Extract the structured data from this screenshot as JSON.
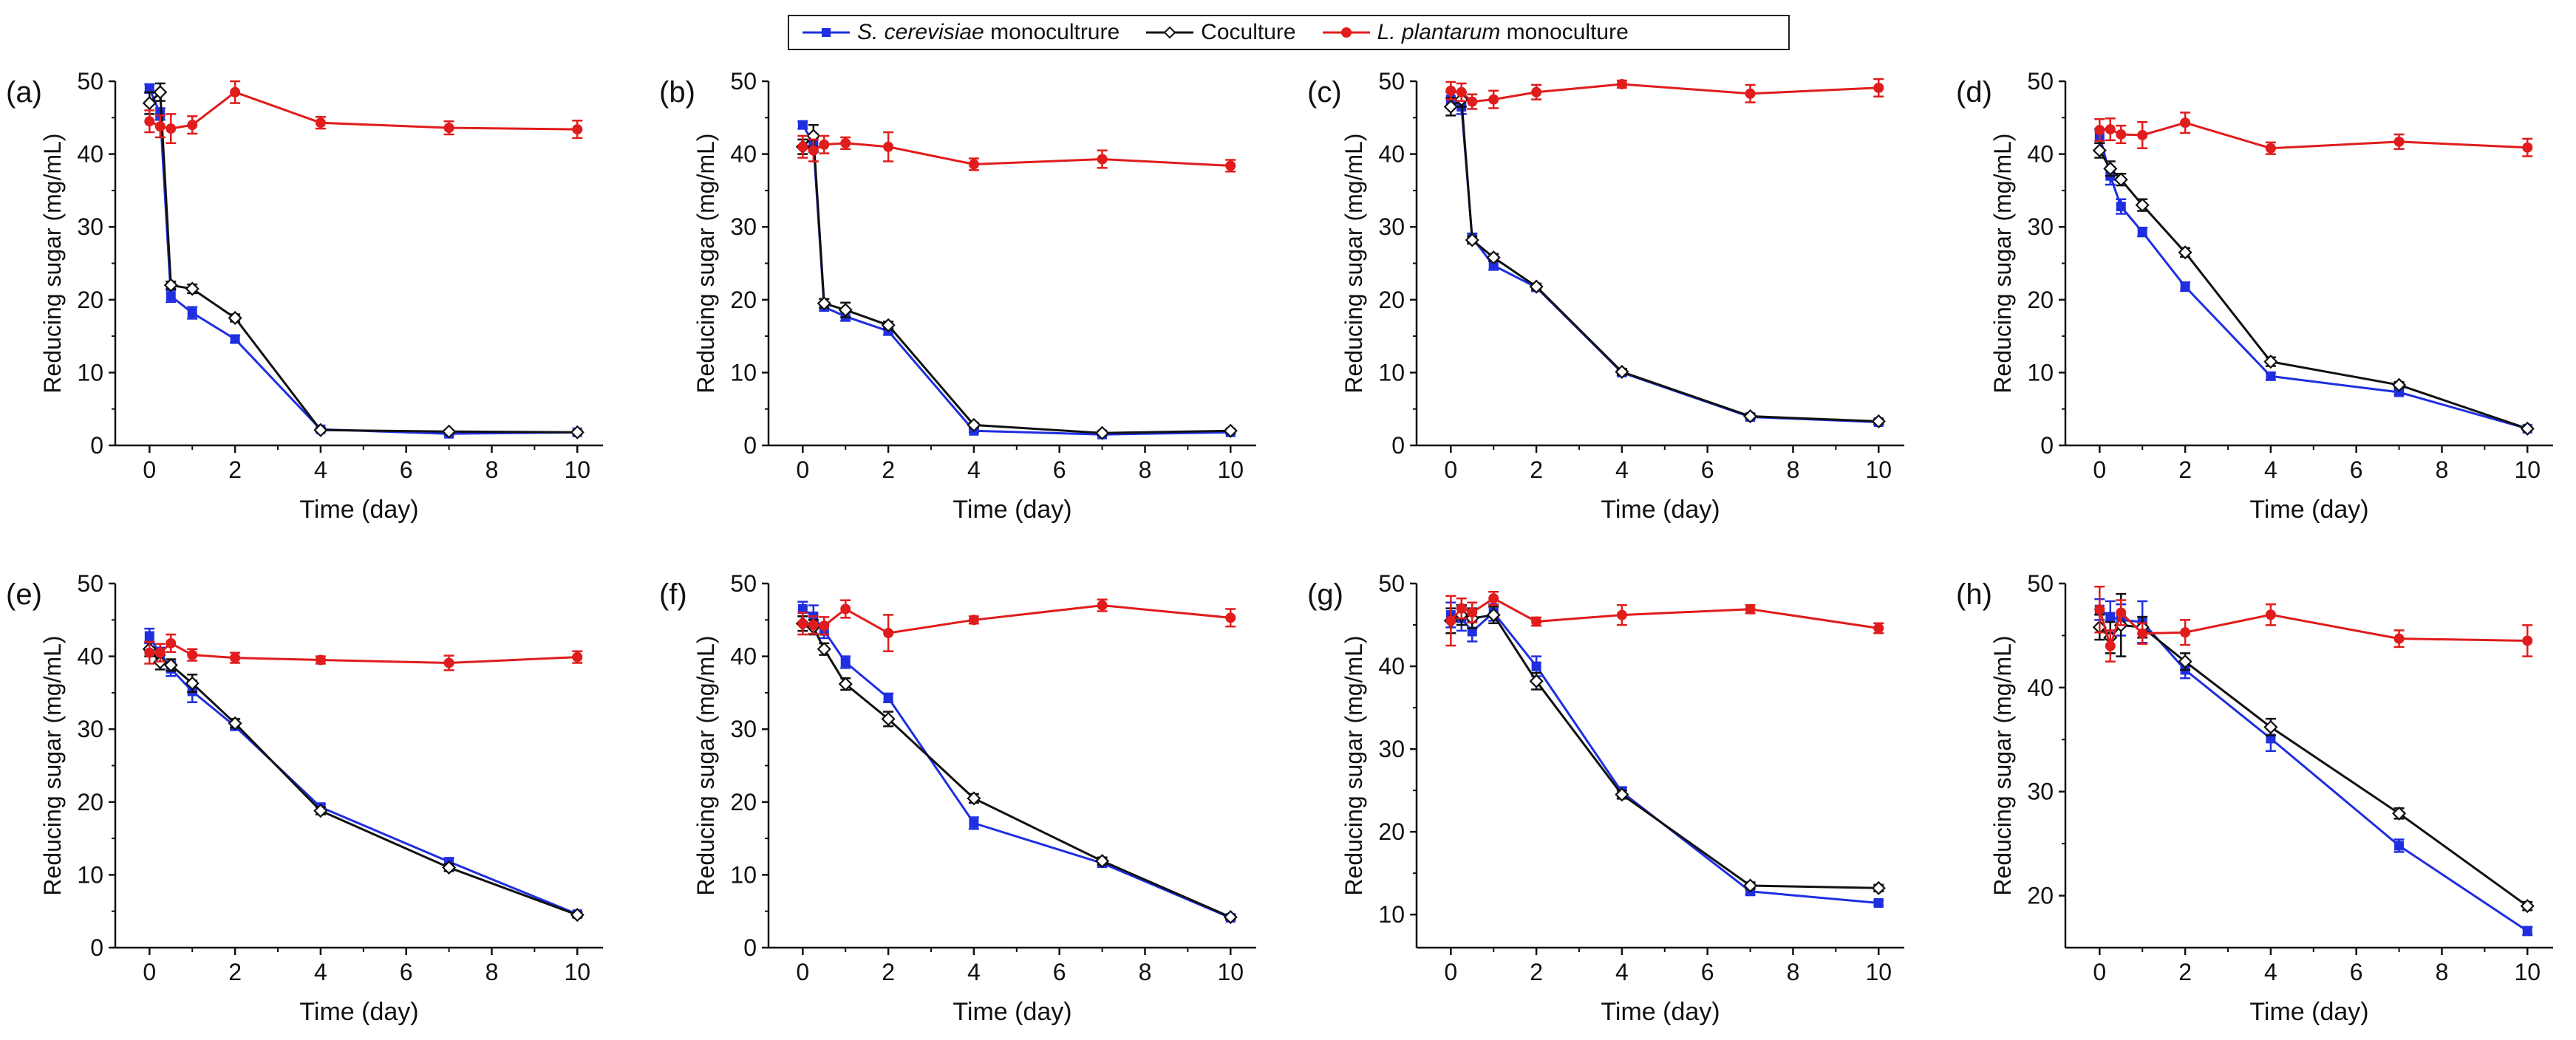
{
  "legend": {
    "scer_italic": "S. cerevisiae",
    "scer_rest": " monocultrure",
    "coculture": "Coculture",
    "lplan_italic": "L. plantarum",
    "lplan_rest": " monoculture"
  },
  "colors": {
    "scer": "#1f2fe0",
    "coculture": "#111111",
    "lplan": "#e01c1c"
  },
  "chart_data": [
    {
      "type": "line",
      "panel_label": "(a)",
      "xlabel": "Time (day)",
      "ylabel": "Reducing sugar (mg/mL)",
      "xlim": [
        -0.8,
        10.6
      ],
      "ylim": [
        0,
        50
      ],
      "xticks": [
        0,
        2,
        4,
        6,
        8,
        10
      ],
      "yticks": [
        0,
        10,
        20,
        30,
        40,
        50
      ],
      "x": [
        0,
        0.25,
        0.5,
        1,
        2,
        4,
        7,
        10
      ],
      "series": [
        {
          "name": "S. cerevisiae monocultrure",
          "values": [
            49,
            45.5,
            20.5,
            18.2,
            14.6,
            2.2,
            1.6,
            1.8
          ],
          "errors": [
            0.6,
            0.8,
            0.8,
            0.8,
            0.5,
            0.2,
            0.2,
            0.2
          ]
        },
        {
          "name": "Coculture",
          "values": [
            47,
            48.5,
            22,
            21.5,
            17.5,
            2.1,
            1.9,
            1.8
          ],
          "errors": [
            1.5,
            1.2,
            0.5,
            0.6,
            0.5,
            0.2,
            0.2,
            0.2
          ]
        },
        {
          "name": "L. plantarum monoculture",
          "values": [
            44.5,
            43.8,
            43.5,
            44,
            48.5,
            44.3,
            43.6,
            43.4
          ],
          "errors": [
            1.5,
            1.5,
            2,
            1.2,
            1.5,
            0.8,
            0.9,
            1.2
          ]
        }
      ]
    },
    {
      "type": "line",
      "panel_label": "(b)",
      "xlabel": "Time (day)",
      "ylabel": "Reducing sugar (mg/mL)",
      "xlim": [
        -0.8,
        10.6
      ],
      "ylim": [
        0,
        50
      ],
      "xticks": [
        0,
        2,
        4,
        6,
        8,
        10
      ],
      "yticks": [
        0,
        10,
        20,
        30,
        40,
        50
      ],
      "x": [
        0,
        0.25,
        0.5,
        1,
        2,
        4,
        7,
        10
      ],
      "series": [
        {
          "name": "S. cerevisiae monocultrure",
          "values": [
            44,
            41.5,
            19,
            17.7,
            15.7,
            2,
            1.5,
            1.8
          ],
          "errors": [
            0.5,
            1.2,
            0.5,
            0.6,
            0.5,
            0.2,
            0.2,
            0.2
          ]
        },
        {
          "name": "Coculture",
          "values": [
            41,
            42.5,
            19.5,
            18.6,
            16.5,
            2.8,
            1.7,
            2
          ],
          "errors": [
            1,
            1.5,
            0.6,
            1,
            0.5,
            0.3,
            0.2,
            0.2
          ]
        },
        {
          "name": "L. plantarum monoculture",
          "values": [
            41,
            40.5,
            41.3,
            41.5,
            41,
            38.6,
            39.3,
            38.4
          ],
          "errors": [
            1.5,
            1.5,
            1.2,
            0.8,
            2,
            0.8,
            1.2,
            0.8
          ]
        }
      ]
    },
    {
      "type": "line",
      "panel_label": "(c)",
      "xlabel": "Time (day)",
      "ylabel": "Reducing sugar (mg/mL)",
      "xlim": [
        -0.8,
        10.6
      ],
      "ylim": [
        0,
        50
      ],
      "xticks": [
        0,
        2,
        4,
        6,
        8,
        10
      ],
      "yticks": [
        0,
        10,
        20,
        30,
        40,
        50
      ],
      "x": [
        0,
        0.25,
        0.5,
        1,
        2,
        4,
        7,
        10
      ],
      "series": [
        {
          "name": "S. cerevisiae monocultrure",
          "values": [
            47.5,
            46.5,
            28.5,
            24.7,
            21.7,
            10,
            3.9,
            3.2
          ],
          "errors": [
            1,
            1,
            0.6,
            0.6,
            0.5,
            0.4,
            0.3,
            0.3
          ]
        },
        {
          "name": "Coculture",
          "values": [
            46.5,
            47.5,
            28.2,
            25.8,
            21.8,
            10.1,
            4,
            3.3
          ],
          "errors": [
            1.2,
            1,
            0.5,
            0.5,
            0.4,
            0.4,
            0.3,
            0.3
          ]
        },
        {
          "name": "L. plantarum monoculture",
          "values": [
            48.7,
            48.5,
            47.2,
            47.5,
            48.5,
            49.6,
            48.3,
            49.1
          ],
          "errors": [
            1.2,
            1.2,
            1,
            1.2,
            1,
            0.5,
            1.2,
            1.2
          ]
        }
      ]
    },
    {
      "type": "line",
      "panel_label": "(d)",
      "xlabel": "Time (day)",
      "ylabel": "Reducing sugar (mg/mL)",
      "xlim": [
        -0.8,
        10.6
      ],
      "ylim": [
        0,
        50
      ],
      "xticks": [
        0,
        2,
        4,
        6,
        8,
        10
      ],
      "yticks": [
        0,
        10,
        20,
        30,
        40,
        50
      ],
      "x": [
        0,
        0.25,
        0.5,
        1,
        2,
        4,
        7,
        10
      ],
      "series": [
        {
          "name": "S. cerevisiae monocultrure",
          "values": [
            42.5,
            37,
            32.8,
            29.3,
            21.8,
            9.5,
            7.3,
            2.3
          ],
          "errors": [
            1,
            1.2,
            1,
            0.6,
            0.6,
            0.5,
            0.4,
            0.2
          ]
        },
        {
          "name": "Coculture",
          "values": [
            40.5,
            38,
            36.5,
            33,
            26.5,
            11.5,
            8.3,
            2.3
          ],
          "errors": [
            1,
            1,
            0.8,
            0.8,
            0.6,
            0.6,
            0.4,
            0.2
          ]
        },
        {
          "name": "L. plantarum monoculture",
          "values": [
            43.3,
            43.4,
            42.7,
            42.6,
            44.3,
            40.8,
            41.7,
            40.9
          ],
          "errors": [
            1.5,
            1.5,
            1.2,
            1.8,
            1.4,
            0.8,
            1,
            1.2
          ]
        }
      ]
    },
    {
      "type": "line",
      "panel_label": "(e)",
      "xlabel": "Time (day)",
      "ylabel": "Reducing sugar (mg/mL)",
      "xlim": [
        -0.8,
        10.6
      ],
      "ylim": [
        0,
        50
      ],
      "xticks": [
        0,
        2,
        4,
        6,
        8,
        10
      ],
      "yticks": [
        0,
        10,
        20,
        30,
        40,
        50
      ],
      "x": [
        0,
        0.25,
        0.5,
        1,
        2,
        4,
        7,
        10
      ],
      "series": [
        {
          "name": "S. cerevisiae monocultrure",
          "values": [
            42.8,
            40.2,
            38.3,
            35.2,
            30.4,
            19.3,
            11.8,
            4.6
          ],
          "errors": [
            1,
            1,
            1,
            1.5,
            0.5,
            0.4,
            0.5,
            0.3
          ]
        },
        {
          "name": "Coculture",
          "values": [
            41,
            39.2,
            38.8,
            36.3,
            30.8,
            18.8,
            11,
            4.5
          ],
          "errors": [
            1,
            1,
            0.8,
            1.2,
            0.6,
            0.5,
            0.5,
            0.3
          ]
        },
        {
          "name": "L. plantarum monoculture",
          "values": [
            40.5,
            40.5,
            41.8,
            40.2,
            39.8,
            39.5,
            39.1,
            39.9
          ],
          "errors": [
            1.5,
            1.2,
            1.2,
            0.8,
            0.7,
            0.5,
            1,
            0.8
          ]
        }
      ]
    },
    {
      "type": "line",
      "panel_label": "(f)",
      "xlabel": "Time (day)",
      "ylabel": "Reducing sugar (mg/mL)",
      "xlim": [
        -0.8,
        10.6
      ],
      "ylim": [
        0,
        50
      ],
      "xticks": [
        0,
        2,
        4,
        6,
        8,
        10
      ],
      "yticks": [
        0,
        10,
        20,
        30,
        40,
        50
      ],
      "x": [
        0,
        0.25,
        0.5,
        1,
        2,
        4,
        7,
        10
      ],
      "series": [
        {
          "name": "S. cerevisiae monocultrure",
          "values": [
            46.5,
            45.5,
            43.5,
            39.2,
            34.3,
            17.1,
            11.6,
            4.1
          ],
          "errors": [
            1,
            1.5,
            1,
            0.8,
            0.6,
            0.8,
            0.5,
            0.3
          ]
        },
        {
          "name": "Coculture",
          "values": [
            44.5,
            44,
            41,
            36.2,
            31.4,
            20.5,
            11.9,
            4.2
          ],
          "errors": [
            1,
            1,
            0.8,
            0.8,
            1,
            0.6,
            0.5,
            0.3
          ]
        },
        {
          "name": "L. plantarum monoculture",
          "values": [
            44.5,
            44.3,
            44.2,
            46.5,
            43.2,
            45,
            47,
            45.3
          ],
          "errors": [
            1.5,
            1.2,
            1.2,
            1.2,
            2.5,
            0.5,
            0.8,
            1.2
          ]
        }
      ]
    },
    {
      "type": "line",
      "panel_label": "(g)",
      "xlabel": "Time (day)",
      "ylabel": "Reducing sugar (mg/mL)",
      "xlim": [
        -0.8,
        10.6
      ],
      "ylim": [
        6,
        50
      ],
      "xticks": [
        0,
        2,
        4,
        6,
        8,
        10
      ],
      "yticks": [
        10,
        20,
        30,
        40,
        50
      ],
      "x": [
        0,
        0.25,
        0.5,
        1,
        2,
        4,
        7,
        10
      ],
      "series": [
        {
          "name": "S. cerevisiae monocultrure",
          "values": [
            46.2,
            45.8,
            44.2,
            46.5,
            40,
            24.8,
            12.8,
            11.4
          ],
          "errors": [
            1.5,
            1.5,
            1.2,
            1,
            1.2,
            0.6,
            0.4,
            0.3
          ]
        },
        {
          "name": "Coculture",
          "values": [
            45.5,
            46.2,
            45.8,
            46.2,
            38.2,
            24.5,
            13.5,
            13.2
          ],
          "errors": [
            1.5,
            1.2,
            1.2,
            1,
            1,
            0.5,
            0.4,
            0.4
          ]
        },
        {
          "name": "L. plantarum monoculture",
          "values": [
            45.5,
            47,
            46.5,
            48.2,
            45.4,
            46.2,
            46.9,
            44.6
          ],
          "errors": [
            3,
            1.2,
            1.2,
            0.8,
            0.5,
            1.2,
            0.5,
            0.6
          ]
        }
      ]
    },
    {
      "type": "line",
      "panel_label": "(h)",
      "xlabel": "Time (day)",
      "ylabel": "Reducing sugar (mg/mL)",
      "xlim": [
        -0.8,
        10.6
      ],
      "ylim": [
        15,
        50
      ],
      "xticks": [
        0,
        2,
        4,
        6,
        8,
        10
      ],
      "yticks": [
        20,
        30,
        40,
        50
      ],
      "x": [
        0,
        0.25,
        0.5,
        1,
        2,
        4,
        7,
        10
      ],
      "series": [
        {
          "name": "S. cerevisiae monocultrure",
          "values": [
            47.5,
            46.8,
            46.5,
            46.3,
            41.7,
            35.1,
            24.8,
            16.6
          ],
          "errors": [
            1,
            1.5,
            1.5,
            2,
            0.8,
            1.2,
            0.6,
            0.4
          ]
        },
        {
          "name": "Coculture",
          "values": [
            45.8,
            44.8,
            46,
            45.8,
            42.5,
            36.2,
            27.9,
            19
          ],
          "errors": [
            1.2,
            1.5,
            3,
            1,
            0.8,
            0.8,
            0.5,
            0.4
          ]
        },
        {
          "name": "L. plantarum monoculture",
          "values": [
            47.5,
            44,
            47.2,
            45.2,
            45.3,
            47,
            44.7,
            44.5
          ],
          "errors": [
            2.2,
            1.5,
            1.2,
            1,
            1.2,
            1,
            0.8,
            1.5
          ]
        }
      ]
    }
  ]
}
